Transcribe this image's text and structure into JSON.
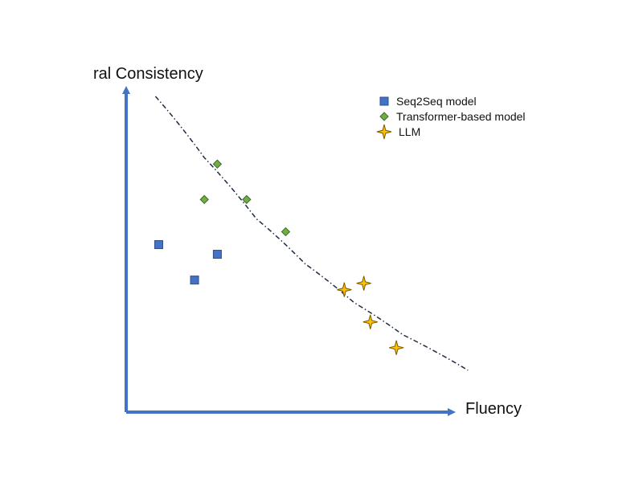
{
  "chart_data": {
    "type": "scatter",
    "xlabel": "Fluency",
    "ylabel": "ral Consistency",
    "xlim": [
      0,
      10
    ],
    "ylim": [
      0,
      10
    ],
    "grid": false,
    "axis_ticks": false,
    "legend_position": "top-right",
    "series": [
      {
        "name": "Seq2Seq model",
        "marker": "square",
        "color": "#4472C4",
        "points": [
          {
            "x": 1.0,
            "y": 5.2
          },
          {
            "x": 2.1,
            "y": 4.1
          },
          {
            "x": 2.8,
            "y": 4.9
          }
        ]
      },
      {
        "name": "Transformer-based model",
        "marker": "diamond",
        "color": "#70AD47",
        "points": [
          {
            "x": 2.4,
            "y": 6.6
          },
          {
            "x": 2.8,
            "y": 7.7
          },
          {
            "x": 3.7,
            "y": 6.6
          },
          {
            "x": 4.9,
            "y": 5.6
          }
        ]
      },
      {
        "name": "LLM",
        "marker": "star4",
        "color": "#FFC000",
        "points": [
          {
            "x": 6.7,
            "y": 3.8
          },
          {
            "x": 7.3,
            "y": 4.0
          },
          {
            "x": 7.5,
            "y": 2.8
          },
          {
            "x": 8.3,
            "y": 2.0
          }
        ]
      }
    ],
    "trend": {
      "style": "dash-dot",
      "color": "#1F2A44",
      "points": [
        {
          "x": 0.9,
          "y": 9.8
        },
        {
          "x": 2.4,
          "y": 7.9
        },
        {
          "x": 4.0,
          "y": 6.0
        },
        {
          "x": 5.5,
          "y": 4.6
        },
        {
          "x": 7.0,
          "y": 3.4
        },
        {
          "x": 8.5,
          "y": 2.4
        },
        {
          "x": 10.5,
          "y": 1.3
        }
      ]
    }
  },
  "colors": {
    "axis": "#4472C4",
    "trend": "#1F2A44"
  }
}
